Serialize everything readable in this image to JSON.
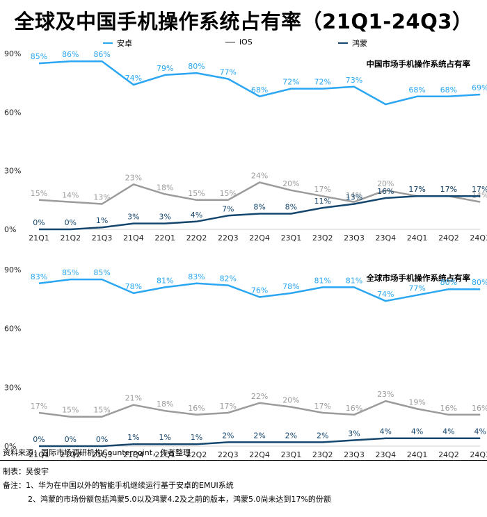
{
  "title": "全球及中国手机操作系统占有率（21Q1-24Q3）",
  "legend": {
    "items": [
      {
        "label": "安卓",
        "color": "#2aa6f2"
      },
      {
        "label": "iOS",
        "color": "#9b9b9b"
      },
      {
        "label": "鸿蒙",
        "color": "#14466e"
      }
    ]
  },
  "chart_data": [
    {
      "type": "line",
      "title": "中国市场手机操作系统占有率",
      "categories": [
        "21Q1",
        "21Q2",
        "21Q3",
        "21Q4",
        "22Q1",
        "22Q2",
        "22Q3",
        "22Q4",
        "23Q1",
        "23Q2",
        "23Q3",
        "23Q4",
        "24Q1",
        "24Q2",
        "24Q3"
      ],
      "ylim": [
        0,
        90
      ],
      "yticks": [
        "0%",
        "30%",
        "60%",
        "90%"
      ],
      "grid": false,
      "series": [
        {
          "name": "安卓",
          "color": "#2aa6f2",
          "values": [
            85,
            86,
            86,
            74,
            79,
            80,
            77,
            68,
            72,
            72,
            73,
            64,
            68,
            68,
            69
          ],
          "labels": [
            "85%",
            "86%",
            "86%",
            "74%",
            "79%",
            "80%",
            "77%",
            "68%",
            "72%",
            "72%",
            "73%",
            "",
            "68%",
            "68%",
            "69%"
          ]
        },
        {
          "name": "iOS",
          "color": "#9b9b9b",
          "values": [
            15,
            14,
            13,
            23,
            18,
            15,
            15,
            24,
            20,
            17,
            14,
            20,
            17,
            17,
            14
          ],
          "labels": [
            "15%",
            "14%",
            "13%",
            "23%",
            "18%",
            "15%",
            "15%",
            "24%",
            "20%",
            "17%",
            "14%",
            "20%",
            "17%",
            "17%",
            "14%"
          ]
        },
        {
          "name": "鸿蒙",
          "color": "#14466e",
          "values": [
            0,
            0,
            1,
            3,
            3,
            4,
            7,
            8,
            8,
            11,
            13,
            16,
            17,
            17,
            17
          ],
          "labels": [
            "0%",
            "0%",
            "1%",
            "3%",
            "3%",
            "4%",
            "7%",
            "8%",
            "8%",
            "11%",
            "13%",
            "16%",
            "17%",
            "17%",
            "17%"
          ]
        }
      ]
    },
    {
      "type": "line",
      "title": "全球市场手机操作系统占有率",
      "categories": [
        "21Q1",
        "21Q2",
        "21Q3",
        "21Q4",
        "22Q1",
        "22Q2",
        "22Q3",
        "22Q4",
        "23Q1",
        "23Q2",
        "23Q3",
        "23Q4",
        "24Q1",
        "24Q2",
        "24Q3"
      ],
      "ylim": [
        0,
        90
      ],
      "yticks": [
        "0%",
        "30%",
        "60%",
        "90%"
      ],
      "grid": false,
      "series": [
        {
          "name": "安卓",
          "color": "#2aa6f2",
          "values": [
            83,
            85,
            85,
            78,
            81,
            83,
            82,
            76,
            78,
            81,
            81,
            74,
            77,
            80,
            80
          ],
          "labels": [
            "83%",
            "85%",
            "85%",
            "78%",
            "81%",
            "83%",
            "82%",
            "76%",
            "78%",
            "81%",
            "81%",
            "74%",
            "77%",
            "80%",
            "80%"
          ]
        },
        {
          "name": "iOS",
          "color": "#9b9b9b",
          "values": [
            17,
            15,
            15,
            21,
            18,
            16,
            17,
            22,
            20,
            17,
            16,
            23,
            19,
            16,
            16
          ],
          "labels": [
            "17%",
            "15%",
            "15%",
            "21%",
            "18%",
            "16%",
            "17%",
            "22%",
            "20%",
            "17%",
            "16%",
            "23%",
            "19%",
            "16%",
            "16%"
          ]
        },
        {
          "name": "鸿蒙",
          "color": "#14466e",
          "values": [
            0,
            0,
            0,
            1,
            1,
            1,
            2,
            2,
            2,
            2,
            3,
            4,
            4,
            4,
            4
          ],
          "labels": [
            "0%",
            "0%",
            "0%",
            "1%",
            "1%",
            "1%",
            "2%",
            "2%",
            "2%",
            "2%",
            "3%",
            "4%",
            "4%",
            "4%",
            "4%"
          ]
        }
      ]
    }
  ],
  "footer": {
    "source": "资料来源：国际市场调研机构Counterpoint，作者整理",
    "author": "制表：吴俊宇",
    "note1": "备注：1、华为在中国以外的智能手机继续运行基于安卓的EMUI系统",
    "note2": "2、鸿蒙的市场份额包括鸿蒙5.0以及鸿蒙4.2及之前的版本，鸿蒙5.0尚未达到17%的份额"
  }
}
